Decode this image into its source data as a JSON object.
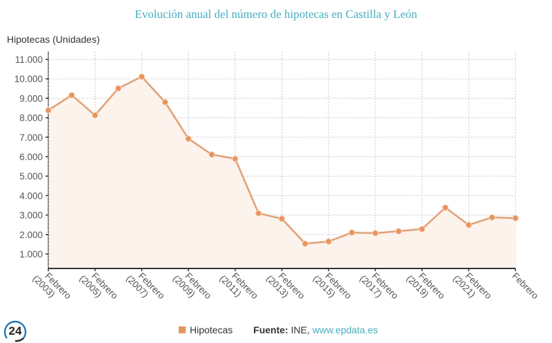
{
  "chart_data": {
    "type": "area",
    "title": "Evolución anual del número de hipotecas en Castilla y León",
    "ylabel": "Hipotecas (Unidades)",
    "xlabel": "",
    "ylim": [
      0,
      11000
    ],
    "yticks": [
      1000,
      2000,
      3000,
      4000,
      5000,
      6000,
      7000,
      8000,
      9000,
      10000,
      11000
    ],
    "ytick_labels": [
      "1.000",
      "2.000",
      "3.000",
      "4.000",
      "5.000",
      "6.000",
      "7.000",
      "8.000",
      "9.000",
      "10.000",
      "11.000"
    ],
    "xticks": [
      2003,
      2005,
      2007,
      2009,
      2011,
      2013,
      2015,
      2017,
      2019,
      2021,
      2023
    ],
    "xtick_labels": [
      [
        "Febrero",
        "(2003)"
      ],
      [
        "Febrero",
        "(2005)"
      ],
      [
        "Febrero",
        "(2007)"
      ],
      [
        "Febrero",
        "(2009)"
      ],
      [
        "Febrero",
        "(2011)"
      ],
      [
        "Febrero",
        "(2013)"
      ],
      [
        "Febrero",
        "(2015)"
      ],
      [
        "Febrero",
        "(2017)"
      ],
      [
        "Febrero",
        "(2019)"
      ],
      [
        "Febrero",
        "(2021)"
      ],
      [
        "Febrero",
        ""
      ]
    ],
    "grid": true,
    "legend_position": "bottom",
    "x": [
      2003,
      2004,
      2005,
      2006,
      2007,
      2008,
      2009,
      2010,
      2011,
      2012,
      2013,
      2014,
      2015,
      2016,
      2017,
      2018,
      2019,
      2020,
      2021,
      2022,
      2023
    ],
    "series": [
      {
        "name": "Hipotecas",
        "color": "#e8945e",
        "values": [
          8380,
          9160,
          8130,
          9510,
          10110,
          8800,
          6920,
          6110,
          5890,
          3090,
          2810,
          1530,
          1640,
          2100,
          2070,
          2170,
          2280,
          3380,
          2490,
          2880,
          2840
        ]
      }
    ]
  },
  "legend": {
    "series_label": "Hipotecas",
    "source_label": "Fuente:",
    "source_text": " INE, ",
    "source_link": "www.epdata.es"
  },
  "logo": {
    "text": "24"
  },
  "colors": {
    "title": "#45aec0",
    "line": "#e8945e",
    "fill": "#fdf1ea",
    "axis": "#333333"
  }
}
